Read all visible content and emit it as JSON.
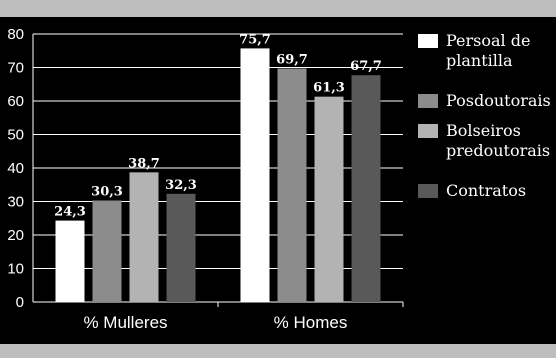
{
  "chart_data": {
    "type": "bar",
    "categories": [
      "% Mulleres",
      "% Homes"
    ],
    "series": [
      {
        "name": "Persoal de plantilla",
        "name_lines": [
          "Persoal de",
          "plantilla"
        ],
        "values": [
          24.3,
          75.7
        ],
        "labels": [
          "24,3",
          "75,7"
        ],
        "color": "#ffffff"
      },
      {
        "name": "Posdoutorais",
        "name_lines": [
          "Posdoutorais"
        ],
        "values": [
          30.3,
          69.7
        ],
        "labels": [
          "30,3",
          "69,7"
        ],
        "color": "#8c8c8c"
      },
      {
        "name": "Bolseiros predoutorais",
        "name_lines": [
          "Bolseiros",
          "predoutorais"
        ],
        "values": [
          38.7,
          61.3
        ],
        "labels": [
          "38,7",
          "61,3"
        ],
        "color": "#b3b3b3"
      },
      {
        "name": "Contratos",
        "name_lines": [
          "Contratos"
        ],
        "values": [
          32.3,
          67.7
        ],
        "labels": [
          "32,3",
          "67,7"
        ],
        "color": "#595959"
      }
    ],
    "ylim": [
      0,
      80
    ],
    "yticks": [
      0,
      10,
      20,
      30,
      40,
      50,
      60,
      70,
      80
    ],
    "grid": true,
    "legend_position": "right",
    "title": "",
    "xlabel": "",
    "ylabel": ""
  },
  "colors": {
    "background": "#000000",
    "band": "#bdbdbd",
    "grid": "#ffffff",
    "text": "#ffffff"
  }
}
